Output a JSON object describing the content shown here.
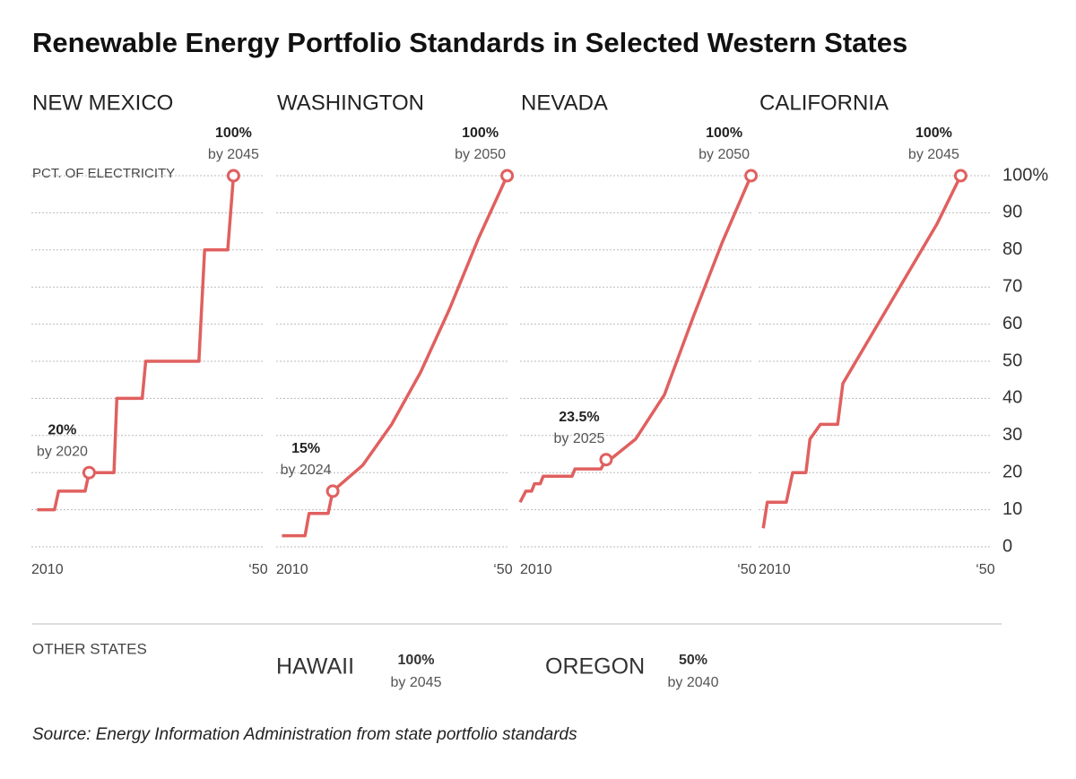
{
  "title": "Renewable Energy Portfolio Standards in Selected Western States",
  "chart_data": {
    "type": "line",
    "ylabel": "PCT. OF ELECTRICITY",
    "color": "#e0605f",
    "grid": true,
    "xlim": [
      2010,
      2050
    ],
    "xticks": [
      2010,
      {
        "value": 2050,
        "label": "‘50"
      }
    ],
    "ylim": [
      0,
      100
    ],
    "yticks": [
      0,
      10,
      20,
      30,
      40,
      50,
      60,
      70,
      80,
      90,
      {
        "value": 100,
        "label": "100%"
      }
    ],
    "panels": [
      {
        "title": "NEW MEXICO",
        "x": [
          2011,
          2014,
          2014.7,
          2019.3,
          2020,
          2024.3,
          2024.8,
          2029.2,
          2029.8,
          2039,
          2040,
          2044,
          2045
        ],
        "values": [
          10,
          10,
          15,
          15,
          20,
          20,
          40,
          40,
          50,
          50,
          80,
          80,
          100
        ],
        "annotations": [
          {
            "x": 2020,
            "y": 20,
            "label": "20%",
            "text": "by 2020"
          },
          {
            "x": 2045,
            "y": 100,
            "label": "100%",
            "text": "by 2045"
          }
        ]
      },
      {
        "title": "WASHINGTON",
        "x": [
          2011,
          2015,
          2015.7,
          2019,
          2019.8,
          2025,
          2030,
          2035,
          2040,
          2045,
          2050
        ],
        "values": [
          3,
          3,
          9,
          9,
          15,
          22,
          33,
          47,
          64,
          83,
          100
        ],
        "annotations": [
          {
            "x": 2019.8,
            "y": 15,
            "label": "15%",
            "text": "by 2024"
          },
          {
            "x": 2050,
            "y": 100,
            "label": "100%",
            "text": "by 2050"
          }
        ]
      },
      {
        "title": "NEVADA",
        "x": [
          2010,
          2011,
          2012,
          2012.5,
          2013.5,
          2014,
          2019,
          2019.5,
          2024,
          2024.9,
          2026,
          2030,
          2035,
          2040,
          2045,
          2050
        ],
        "values": [
          12,
          15,
          15,
          17,
          17,
          19,
          19,
          21,
          21,
          23.5,
          24,
          29,
          41,
          62,
          82,
          100
        ],
        "annotations": [
          {
            "x": 2024.9,
            "y": 23.5,
            "label": "23.5%",
            "text": "by 2025"
          },
          {
            "x": 2050,
            "y": 100,
            "label": "100%",
            "text": "by 2050"
          }
        ]
      },
      {
        "title": "CALIFORNIA",
        "x": [
          2010.8,
          2011.5,
          2014.8,
          2015.9,
          2018.2,
          2018.9,
          2020.7,
          2023.7,
          2024.6,
          2040.9,
          2045
        ],
        "values": [
          5,
          12,
          12,
          20,
          20,
          29,
          33,
          33,
          44,
          87,
          100
        ],
        "annotations": [
          {
            "x": 2045,
            "y": 100,
            "label": "100%",
            "text": "by 2045"
          }
        ]
      }
    ]
  },
  "other_states": {
    "label": "OTHER STATES",
    "items": [
      {
        "name": "HAWAII",
        "value_label": "100%",
        "text": "by 2045"
      },
      {
        "name": "OREGON",
        "value_label": "50%",
        "text": "by 2040"
      }
    ]
  },
  "source": "Source: Energy Information Administration from state portfolio standards"
}
